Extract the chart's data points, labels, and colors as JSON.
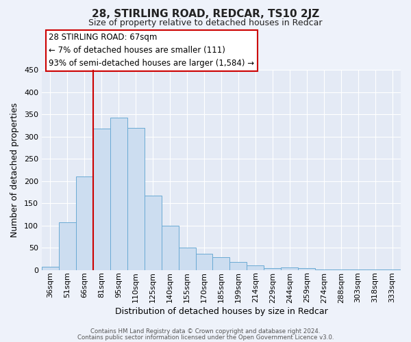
{
  "title": "28, STIRLING ROAD, REDCAR, TS10 2JZ",
  "subtitle": "Size of property relative to detached houses in Redcar",
  "xlabel": "Distribution of detached houses by size in Redcar",
  "ylabel": "Number of detached properties",
  "footer_line1": "Contains HM Land Registry data © Crown copyright and database right 2024.",
  "footer_line2": "Contains public sector information licensed under the Open Government Licence v3.0.",
  "bar_labels": [
    "36sqm",
    "51sqm",
    "66sqm",
    "81sqm",
    "95sqm",
    "110sqm",
    "125sqm",
    "140sqm",
    "155sqm",
    "170sqm",
    "185sqm",
    "199sqm",
    "214sqm",
    "229sqm",
    "244sqm",
    "259sqm",
    "274sqm",
    "288sqm",
    "303sqm",
    "318sqm",
    "333sqm"
  ],
  "bar_values": [
    7,
    107,
    211,
    318,
    343,
    320,
    167,
    99,
    50,
    36,
    29,
    18,
    10,
    4,
    6,
    4,
    1,
    1,
    1,
    1,
    1
  ],
  "bar_color": "#ccddf0",
  "bar_edge_color": "#6aaad4",
  "ylim": [
    0,
    450
  ],
  "yticks": [
    0,
    50,
    100,
    150,
    200,
    250,
    300,
    350,
    400,
    450
  ],
  "vline_index": 2,
  "vline_color": "#cc0000",
  "annotation_title": "28 STIRLING ROAD: 67sqm",
  "annotation_line1": "← 7% of detached houses are smaller (111)",
  "annotation_line2": "93% of semi-detached houses are larger (1,584) →",
  "bg_color": "#eef2fa",
  "plot_bg_color": "#e4eaf5",
  "grid_color": "#ffffff",
  "title_fontsize": 11,
  "subtitle_fontsize": 9,
  "ylabel_fontsize": 9,
  "xlabel_fontsize": 9,
  "tick_fontsize": 8,
  "annotation_fontsize": 8.5
}
